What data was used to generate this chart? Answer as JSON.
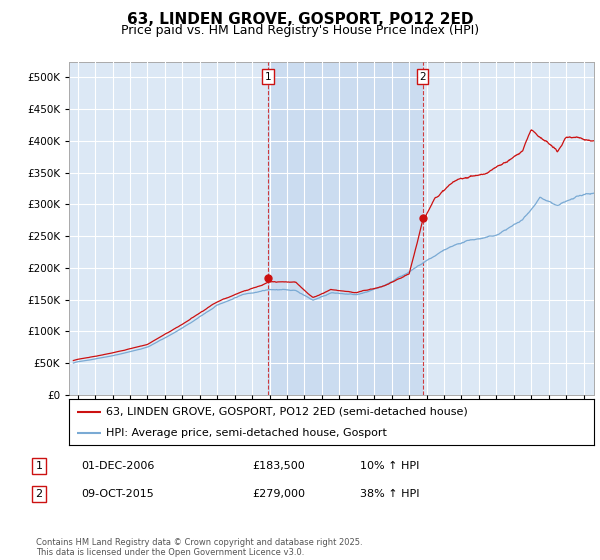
{
  "title": "63, LINDEN GROVE, GOSPORT, PO12 2ED",
  "subtitle": "Price paid vs. HM Land Registry's House Price Index (HPI)",
  "ytick_values": [
    0,
    50000,
    100000,
    150000,
    200000,
    250000,
    300000,
    350000,
    400000,
    450000,
    500000
  ],
  "ylim": [
    0,
    525000
  ],
  "xlim_start": 1995.5,
  "xlim_end": 2025.6,
  "hpi_color": "#7aaad4",
  "price_color": "#cc1111",
  "marker1_x": 2006.92,
  "marker1_y": 183500,
  "marker2_x": 2015.77,
  "marker2_y": 279000,
  "legend_label_price": "63, LINDEN GROVE, GOSPORT, PO12 2ED (semi-detached house)",
  "legend_label_hpi": "HPI: Average price, semi-detached house, Gosport",
  "table_row1": [
    "1",
    "01-DEC-2006",
    "£183,500",
    "10% ↑ HPI"
  ],
  "table_row2": [
    "2",
    "09-OCT-2015",
    "£279,000",
    "38% ↑ HPI"
  ],
  "footer": "Contains HM Land Registry data © Crown copyright and database right 2025.\nThis data is licensed under the Open Government Licence v3.0.",
  "background_color": "#ffffff",
  "plot_bg_color": "#dce8f5",
  "shade_color": "#c5d8ee",
  "grid_color": "#ffffff",
  "title_fontsize": 11,
  "subtitle_fontsize": 9,
  "tick_fontsize": 7.5,
  "legend_fontsize": 8
}
